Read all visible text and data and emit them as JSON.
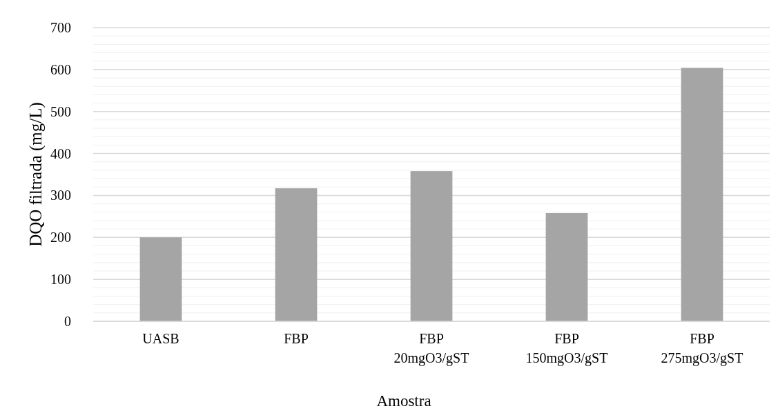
{
  "chart_data": {
    "type": "bar",
    "xlabel": "Amostra",
    "ylabel": "DQO filtrada (mg/L)",
    "categories": [
      "UASB",
      "FBP",
      "FBP\n20mgO3/gST",
      "FBP\n150mgO3/gST",
      "FBP\n275mgO3/gST"
    ],
    "values": [
      200,
      317,
      358,
      258,
      604
    ],
    "color": "#a5a5a5",
    "ylim": [
      0,
      700
    ],
    "yticks": [
      0,
      {
        "value": 20,
        "label": null
      },
      {
        "value": 40,
        "label": null
      },
      {
        "value": 60,
        "label": null
      },
      {
        "value": 80,
        "label": null
      },
      100,
      {
        "value": 120,
        "label": null
      },
      {
        "value": 140,
        "label": null
      },
      {
        "value": 160,
        "label": null
      },
      {
        "value": 180,
        "label": null
      },
      200,
      {
        "value": 220,
        "label": null
      },
      {
        "value": 240,
        "label": null
      },
      {
        "value": 260,
        "label": null
      },
      {
        "value": 280,
        "label": null
      },
      300,
      {
        "value": 320,
        "label": null
      },
      {
        "value": 340,
        "label": null
      },
      {
        "value": 360,
        "label": null
      },
      {
        "value": 380,
        "label": null
      },
      400,
      {
        "value": 420,
        "label": null
      },
      {
        "value": 440,
        "label": null
      },
      {
        "value": 460,
        "label": null
      },
      {
        "value": 480,
        "label": null
      },
      500,
      {
        "value": 520,
        "label": null
      },
      {
        "value": 540,
        "label": null
      },
      {
        "value": 560,
        "label": null
      },
      {
        "value": 580,
        "label": null
      },
      600,
      {
        "value": 620,
        "label": null
      },
      {
        "value": 640,
        "label": null
      },
      {
        "value": 660,
        "label": null
      },
      {
        "value": 680,
        "label": null
      },
      700
    ],
    "grid": "y"
  }
}
